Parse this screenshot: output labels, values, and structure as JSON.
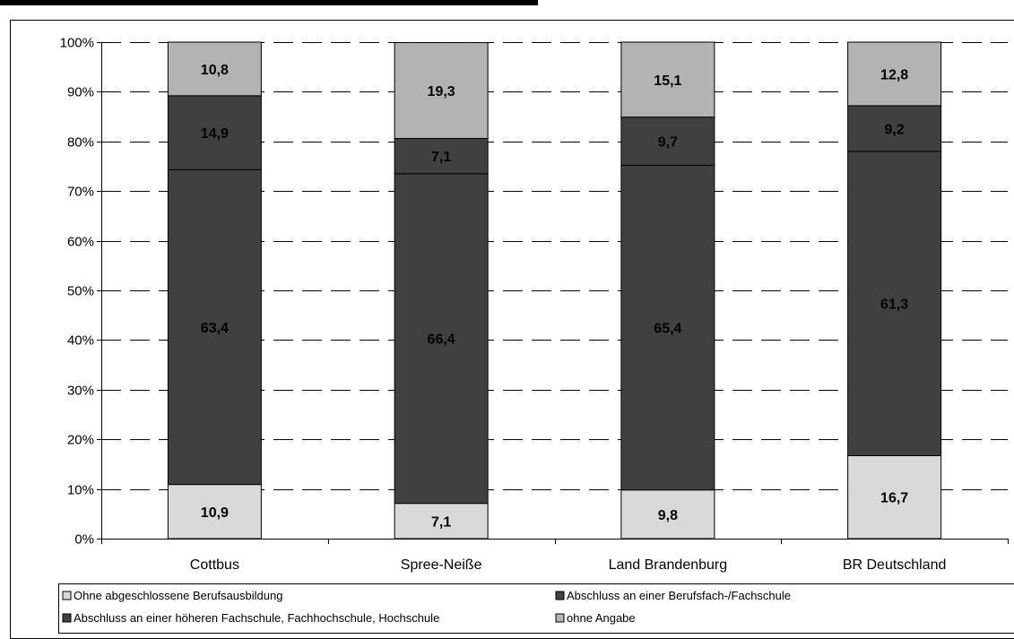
{
  "chart_data": {
    "type": "bar",
    "stacked": true,
    "percent": true,
    "categories": [
      "Cottbus",
      "Spree-Neiße",
      "Land Brandenburg",
      "BR Deutschland"
    ],
    "series": [
      {
        "name": "Ohne abgeschlossene Berufsausbildung",
        "color": "#d9d9d9",
        "values": [
          10.9,
          7.1,
          9.8,
          16.7
        ],
        "labels": [
          "10,9",
          "7,1",
          "9,8",
          "16,7"
        ]
      },
      {
        "name": "Abschluss an einer Berufsfach-/Fachschule",
        "color": "#404040",
        "values": [
          63.4,
          66.4,
          65.4,
          61.3
        ],
        "labels": [
          "63,4",
          "66,4",
          "65,4",
          "61,3"
        ]
      },
      {
        "name": "Abschluss an einer höheren Fachschule, Fachhochschule, Hochschule",
        "color": "#404040",
        "values": [
          14.9,
          7.1,
          9.7,
          9.2
        ],
        "labels": [
          "14,9",
          "7,1",
          "9,7",
          "9,2"
        ]
      },
      {
        "name": "ohne Angabe",
        "color": "#b3b3b3",
        "values": [
          10.8,
          19.3,
          15.1,
          12.8
        ],
        "labels": [
          "10,8",
          "19,3",
          "15,1",
          "12,8"
        ]
      }
    ],
    "y_ticks": [
      "0%",
      "10%",
      "20%",
      "30%",
      "40%",
      "50%",
      "60%",
      "70%",
      "80%",
      "90%",
      "100%"
    ],
    "ylim": [
      0,
      100
    ],
    "grid": true,
    "legend_position": "bottom"
  }
}
